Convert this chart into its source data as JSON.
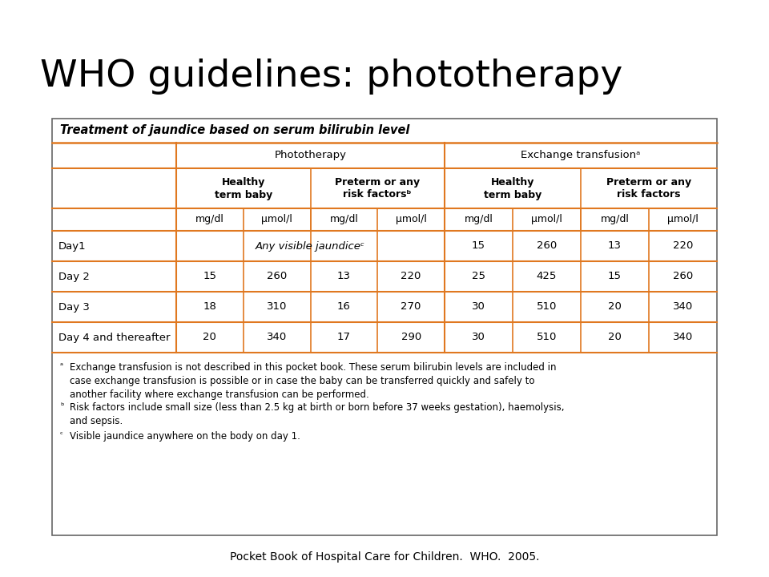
{
  "title": "WHO guidelines: phototherapy",
  "subtitle": "Treatment of jaundice based on serum bilirubin level",
  "footer": "Pocket Book of Hospital Care for Children.  WHO.  2005.",
  "orange": "#E07820",
  "col_headers_L1": [
    "Phototherapy",
    "Exchange transfusionᵃ"
  ],
  "col_headers_L2": [
    "Healthy\nterm baby",
    "Preterm or any\nrisk factorsᵇ",
    "Healthy\nterm baby",
    "Preterm or any\nrisk factors"
  ],
  "col_headers_L3": [
    "mg/dl",
    "μmol/l",
    "mg/dl",
    "μmol/l",
    "mg/dl",
    "μmol/l",
    "mg/dl",
    "μmol/l"
  ],
  "row_labels": [
    "Day1",
    "Day 2",
    "Day 3",
    "Day 4 and thereafter"
  ],
  "data": [
    [
      "Any visible jaundiceᶜ",
      null,
      null,
      null,
      "15",
      "260",
      "13",
      "220"
    ],
    [
      "15",
      "260",
      "13",
      "220",
      "25",
      "425",
      "15",
      "260"
    ],
    [
      "18",
      "310",
      "16",
      "270",
      "30",
      "510",
      "20",
      "340"
    ],
    [
      "20",
      "340",
      "17",
      "290",
      "30",
      "510",
      "20",
      "340"
    ]
  ],
  "fn_a": "Exchange transfusion is not described in this pocket book. These serum bilirubin levels are included in\ncase exchange transfusion is possible or in case the baby can be transferred quickly and safely to\nanother facility where exchange transfusion can be performed.",
  "fn_b": "Risk factors include small size (less than 2.5 kg at birth or born before 37 weeks gestation), haemolysis,\nand sepsis.",
  "fn_c": "Visible jaundice anywhere on the body on day 1.",
  "background_color": "#ffffff"
}
